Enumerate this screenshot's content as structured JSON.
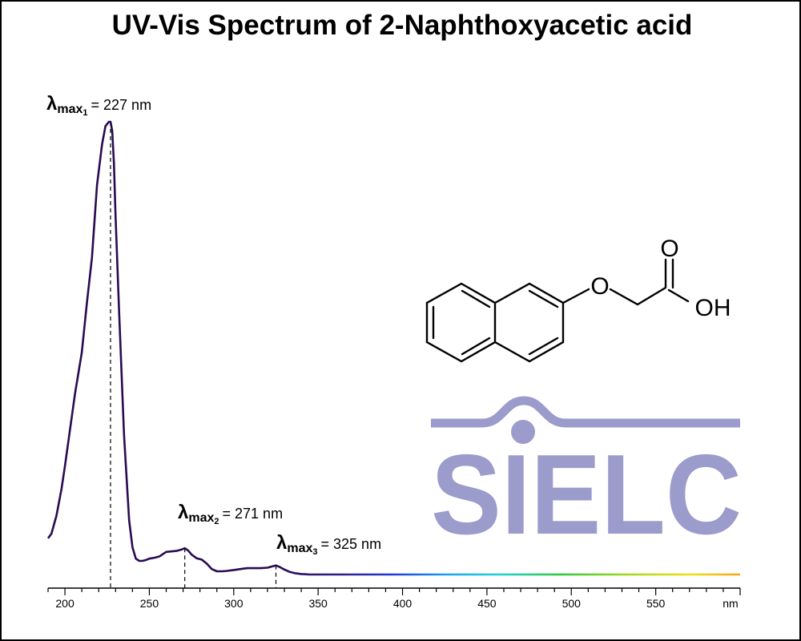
{
  "chart_data": {
    "type": "line",
    "title": "UV-Vis Spectrum of 2-Naphthoxyacetic acid",
    "xlabel": "nm",
    "ylabel": "",
    "xlim": [
      190,
      600
    ],
    "x_ticks": [
      200,
      250,
      300,
      350,
      400,
      450,
      500,
      550
    ],
    "x_tick_unit": "nm",
    "grid": false,
    "legend": "none",
    "series": [
      {
        "x": [
          190,
          192,
          195,
          198,
          200,
          203,
          206,
          210,
          213,
          216,
          219,
          222,
          224,
          226,
          227,
          228,
          229,
          230,
          232,
          235,
          238,
          240,
          242,
          244,
          246,
          248,
          250,
          253,
          256,
          258,
          260,
          263,
          266,
          269,
          271,
          273,
          275,
          278,
          281,
          284,
          287,
          290,
          293,
          296,
          300,
          304,
          308,
          312,
          316,
          320,
          323,
          325,
          327,
          330,
          333,
          336,
          340,
          345,
          350,
          400,
          450,
          500,
          550,
          600
        ],
        "y": [
          0.08,
          0.09,
          0.13,
          0.19,
          0.24,
          0.32,
          0.4,
          0.49,
          0.6,
          0.7,
          0.86,
          0.95,
          0.99,
          1.0,
          1.0,
          0.98,
          0.91,
          0.79,
          0.59,
          0.31,
          0.12,
          0.06,
          0.035,
          0.03,
          0.03,
          0.032,
          0.035,
          0.037,
          0.04,
          0.045,
          0.05,
          0.051,
          0.052,
          0.055,
          0.058,
          0.053,
          0.044,
          0.036,
          0.033,
          0.024,
          0.012,
          0.007,
          0.007,
          0.008,
          0.01,
          0.012,
          0.014,
          0.014,
          0.014,
          0.015,
          0.018,
          0.02,
          0.017,
          0.011,
          0.006,
          0.003,
          0.001,
          0.0,
          0.0,
          0.0,
          0.0,
          0.0,
          0.0,
          0.0
        ]
      }
    ],
    "annotations": [
      {
        "label": "λmax1 = 227 nm",
        "symbol": "λ",
        "sub": "max",
        "index": "1",
        "value_text": "= 227 nm",
        "x": 227
      },
      {
        "label": "λmax2 = 271 nm",
        "symbol": "λ",
        "sub": "max",
        "index": "2",
        "value_text": "= 271 nm",
        "x": 271
      },
      {
        "label": "λmax3 = 325 nm",
        "symbol": "λ",
        "sub": "max",
        "index": "3",
        "value_text": "= 325 nm",
        "x": 325
      }
    ]
  },
  "logo": {
    "text": "SIELC",
    "color": "#9b9bcc"
  },
  "molecule": {
    "name": "2-Naphthoxyacetic acid",
    "atom_O_ether": "O",
    "atom_O_carbonyl": "O",
    "atom_OH": "OH"
  },
  "colors": {
    "curve": "#2a0a52",
    "axis": "#000000"
  }
}
